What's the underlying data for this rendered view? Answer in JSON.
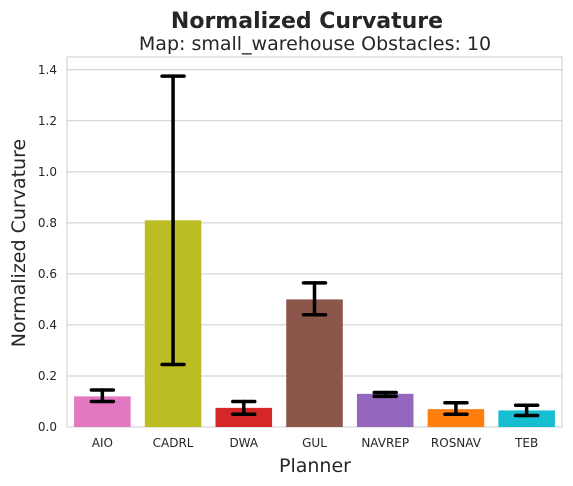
{
  "chart_data": {
    "type": "bar",
    "title": "Normalized Curvature",
    "subtitle": "Map: small_warehouse Obstacles: 10",
    "xlabel": "Planner",
    "ylabel": "Normalized Curvature",
    "ylim": [
      0,
      1.45
    ],
    "yticks": [
      "0.0",
      "0.2",
      "0.4",
      "0.6",
      "0.8",
      "1.0",
      "1.2",
      "1.4"
    ],
    "grid": true,
    "categories": [
      "AIO",
      "CADRL",
      "DWA",
      "GUL",
      "NAVREP",
      "ROSNAV",
      "TEB"
    ],
    "values": [
      0.12,
      0.81,
      0.075,
      0.5,
      0.13,
      0.07,
      0.065
    ],
    "error_low": [
      0.1,
      0.245,
      0.05,
      0.44,
      0.12,
      0.05,
      0.045
    ],
    "error_high": [
      0.145,
      1.375,
      0.1,
      0.565,
      0.135,
      0.095,
      0.085
    ],
    "colors": [
      "#e377c2",
      "#bcbd22",
      "#d62728",
      "#8c564b",
      "#9467bd",
      "#ff7f0e",
      "#17becf"
    ]
  }
}
